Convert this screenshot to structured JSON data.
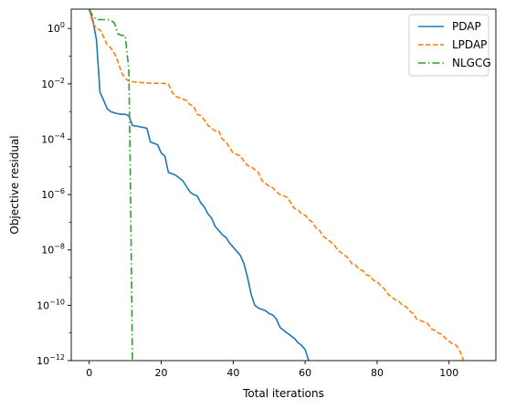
{
  "chart_data": {
    "type": "line",
    "xlabel": "Total iterations",
    "ylabel": "Objective residual",
    "xlim": [
      -5,
      113
    ],
    "ylim_log10": [
      -12,
      0.7
    ],
    "yscale": "log",
    "xticks": [
      0,
      20,
      40,
      60,
      80,
      100
    ],
    "xtick_labels": [
      "0",
      "20",
      "40",
      "60",
      "80",
      "100"
    ],
    "ytick_exponents": [
      0,
      -2,
      -4,
      -6,
      -8,
      -10,
      -12
    ],
    "ytick_labels": [
      "0",
      "−2",
      "−4",
      "−6",
      "−8",
      "−10",
      "−12"
    ],
    "ytick_base": "10",
    "legend_position": "top-right",
    "series": [
      {
        "name": "PDAP",
        "color": "#1f77b4",
        "dash": "solid",
        "points": [
          [
            0,
            0.7
          ],
          [
            1,
            0.3
          ],
          [
            2,
            -0.4
          ],
          [
            3,
            -2.3
          ],
          [
            4,
            -2.6
          ],
          [
            5,
            -2.9
          ],
          [
            6,
            -3.0
          ],
          [
            7,
            -3.05
          ],
          [
            8,
            -3.08
          ],
          [
            9,
            -3.1
          ],
          [
            10,
            -3.1
          ],
          [
            11,
            -3.15
          ],
          [
            12,
            -3.5
          ],
          [
            14,
            -3.55
          ],
          [
            16,
            -3.6
          ],
          [
            17,
            -4.1
          ],
          [
            19,
            -4.2
          ],
          [
            20,
            -4.5
          ],
          [
            21,
            -4.6
          ],
          [
            22,
            -5.2
          ],
          [
            24,
            -5.3
          ],
          [
            26,
            -5.5
          ],
          [
            27,
            -5.7
          ],
          [
            28,
            -5.9
          ],
          [
            29,
            -6.0
          ],
          [
            30,
            -6.05
          ],
          [
            31,
            -6.3
          ],
          [
            32,
            -6.45
          ],
          [
            33,
            -6.7
          ],
          [
            34,
            -6.85
          ],
          [
            35,
            -7.15
          ],
          [
            36,
            -7.3
          ],
          [
            37,
            -7.45
          ],
          [
            38,
            -7.55
          ],
          [
            39,
            -7.75
          ],
          [
            40,
            -7.9
          ],
          [
            41,
            -8.05
          ],
          [
            42,
            -8.2
          ],
          [
            43,
            -8.5
          ],
          [
            44,
            -9.0
          ],
          [
            45,
            -9.6
          ],
          [
            46,
            -10.0
          ],
          [
            47,
            -10.1
          ],
          [
            48,
            -10.15
          ],
          [
            49,
            -10.2
          ],
          [
            50,
            -10.3
          ],
          [
            51,
            -10.35
          ],
          [
            52,
            -10.5
          ],
          [
            53,
            -10.8
          ],
          [
            54,
            -10.9
          ],
          [
            55,
            -11.0
          ],
          [
            56,
            -11.1
          ],
          [
            57,
            -11.2
          ],
          [
            58,
            -11.35
          ],
          [
            59,
            -11.45
          ],
          [
            60,
            -11.6
          ],
          [
            61,
            -12.0
          ]
        ]
      },
      {
        "name": "LPDAP",
        "color": "#ff7f0e",
        "dash": "dashed",
        "points": [
          [
            0,
            0.7
          ],
          [
            1,
            0.2
          ],
          [
            2,
            0.0
          ],
          [
            3,
            -0.05
          ],
          [
            4,
            -0.3
          ],
          [
            5,
            -0.6
          ],
          [
            6,
            -0.7
          ],
          [
            7,
            -0.9
          ],
          [
            8,
            -1.2
          ],
          [
            9,
            -1.6
          ],
          [
            10,
            -1.8
          ],
          [
            11,
            -1.9
          ],
          [
            12,
            -1.92
          ],
          [
            14,
            -1.95
          ],
          [
            16,
            -1.97
          ],
          [
            18,
            -1.98
          ],
          [
            20,
            -1.98
          ],
          [
            22,
            -2.0
          ],
          [
            23,
            -2.3
          ],
          [
            24,
            -2.45
          ],
          [
            25,
            -2.5
          ],
          [
            26,
            -2.55
          ],
          [
            27,
            -2.6
          ],
          [
            28,
            -2.75
          ],
          [
            29,
            -2.8
          ],
          [
            30,
            -3.1
          ],
          [
            31,
            -3.15
          ],
          [
            32,
            -3.3
          ],
          [
            33,
            -3.5
          ],
          [
            34,
            -3.6
          ],
          [
            35,
            -3.7
          ],
          [
            36,
            -3.7
          ],
          [
            37,
            -4.0
          ],
          [
            38,
            -4.1
          ],
          [
            39,
            -4.3
          ],
          [
            40,
            -4.5
          ],
          [
            41,
            -4.55
          ],
          [
            42,
            -4.6
          ],
          [
            43,
            -4.8
          ],
          [
            44,
            -4.95
          ],
          [
            45,
            -5.0
          ],
          [
            46,
            -5.1
          ],
          [
            47,
            -5.2
          ],
          [
            48,
            -5.5
          ],
          [
            49,
            -5.6
          ],
          [
            50,
            -5.7
          ],
          [
            51,
            -5.75
          ],
          [
            52,
            -5.9
          ],
          [
            53,
            -6.0
          ],
          [
            54,
            -6.05
          ],
          [
            55,
            -6.1
          ],
          [
            56,
            -6.3
          ],
          [
            57,
            -6.5
          ],
          [
            58,
            -6.55
          ],
          [
            59,
            -6.7
          ],
          [
            60,
            -6.75
          ],
          [
            61,
            -6.9
          ],
          [
            62,
            -7.0
          ],
          [
            63,
            -7.2
          ],
          [
            64,
            -7.3
          ],
          [
            65,
            -7.5
          ],
          [
            66,
            -7.6
          ],
          [
            67,
            -7.7
          ],
          [
            68,
            -7.8
          ],
          [
            69,
            -8.0
          ],
          [
            70,
            -8.1
          ],
          [
            71,
            -8.2
          ],
          [
            72,
            -8.3
          ],
          [
            73,
            -8.5
          ],
          [
            74,
            -8.55
          ],
          [
            75,
            -8.7
          ],
          [
            76,
            -8.75
          ],
          [
            77,
            -8.9
          ],
          [
            78,
            -8.95
          ],
          [
            79,
            -9.1
          ],
          [
            80,
            -9.15
          ],
          [
            81,
            -9.3
          ],
          [
            82,
            -9.4
          ],
          [
            83,
            -9.6
          ],
          [
            84,
            -9.7
          ],
          [
            85,
            -9.8
          ],
          [
            86,
            -9.85
          ],
          [
            87,
            -10.0
          ],
          [
            88,
            -10.05
          ],
          [
            89,
            -10.2
          ],
          [
            90,
            -10.3
          ],
          [
            91,
            -10.5
          ],
          [
            92,
            -10.55
          ],
          [
            93,
            -10.6
          ],
          [
            94,
            -10.65
          ],
          [
            95,
            -10.85
          ],
          [
            96,
            -10.9
          ],
          [
            97,
            -11.0
          ],
          [
            98,
            -11.05
          ],
          [
            99,
            -11.2
          ],
          [
            100,
            -11.3
          ],
          [
            101,
            -11.4
          ],
          [
            102,
            -11.45
          ],
          [
            103,
            -11.65
          ],
          [
            104,
            -12.0
          ]
        ]
      },
      {
        "name": "NLGCG",
        "color": "#2ca02c",
        "dash": "dashdot",
        "points": [
          [
            0,
            0.7
          ],
          [
            1,
            0.45
          ],
          [
            2,
            0.32
          ],
          [
            3,
            0.32
          ],
          [
            4,
            0.32
          ],
          [
            5,
            0.32
          ],
          [
            6,
            0.3
          ],
          [
            7,
            0.2
          ],
          [
            8,
            -0.2
          ],
          [
            9,
            -0.25
          ],
          [
            10,
            -0.25
          ],
          [
            11,
            -1.5
          ],
          [
            11.5,
            -6.0
          ],
          [
            12,
            -12.0
          ]
        ]
      }
    ]
  }
}
